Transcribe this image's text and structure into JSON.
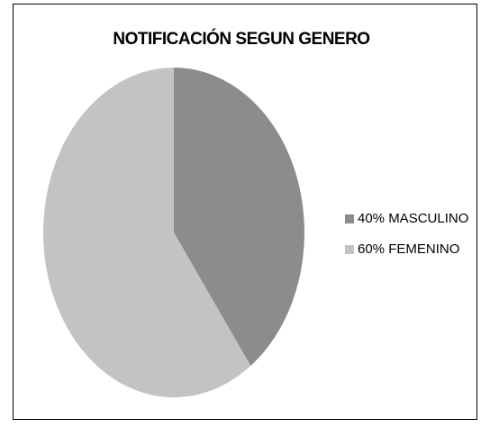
{
  "chart_data": {
    "type": "pie",
    "title": "NOTIFICACIÓN SEGUN GENERO",
    "categories": [
      "40% MASCULINO",
      "60% FEMENINO"
    ],
    "values": [
      40,
      60
    ],
    "colors": [
      "#8c8c8c",
      "#c3c3c3"
    ]
  }
}
